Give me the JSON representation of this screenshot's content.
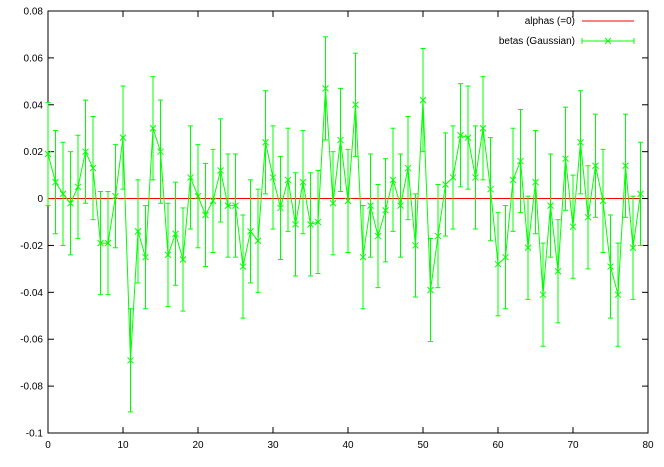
{
  "chart_data": {
    "type": "line",
    "title": "",
    "xlabel": "",
    "ylabel": "",
    "xlim": [
      0,
      80
    ],
    "ylim": [
      -0.1,
      0.08
    ],
    "xticks": [
      0,
      10,
      20,
      30,
      40,
      50,
      60,
      70,
      80
    ],
    "xtick_labels": [
      "0",
      "10",
      "20",
      "30",
      "40",
      "50",
      "60",
      "70",
      "80"
    ],
    "yticks": [
      -0.1,
      -0.08,
      -0.06,
      -0.04,
      -0.02,
      0,
      0.02,
      0.04,
      0.06,
      0.08
    ],
    "ytick_labels": [
      "-0.1",
      "-0.08",
      "-0.06",
      "-0.04",
      "-0.02",
      "0",
      "0.02",
      "0.04",
      "0.06",
      "0.08"
    ],
    "grid": false,
    "legend_position": "top-right",
    "series": [
      {
        "name": "alphas (=0)",
        "color": "#ff0000",
        "style": "line",
        "x": [
          0,
          79
        ],
        "y": [
          0,
          0
        ]
      },
      {
        "name": "betas (Gaussian)",
        "color": "#00ff00",
        "style": "linespoints-errorbars",
        "marker": "x",
        "x": [
          0,
          1,
          2,
          3,
          4,
          5,
          6,
          7,
          8,
          9,
          10,
          11,
          12,
          13,
          14,
          15,
          16,
          17,
          18,
          19,
          20,
          21,
          22,
          23,
          24,
          25,
          26,
          27,
          28,
          29,
          30,
          31,
          32,
          33,
          34,
          35,
          36,
          37,
          38,
          39,
          40,
          41,
          42,
          43,
          44,
          45,
          46,
          47,
          48,
          49,
          50,
          51,
          52,
          53,
          54,
          55,
          56,
          57,
          58,
          59,
          60,
          61,
          62,
          63,
          64,
          65,
          66,
          67,
          68,
          69,
          70,
          71,
          72,
          73,
          74,
          75,
          76,
          77,
          78,
          79
        ],
        "y": [
          0.019,
          0.007,
          0.002,
          -0.002,
          0.005,
          0.02,
          0.013,
          -0.019,
          -0.019,
          0.001,
          0.026,
          -0.069,
          -0.014,
          -0.025,
          0.03,
          0.02,
          -0.024,
          -0.015,
          -0.026,
          0.009,
          0.001,
          -0.007,
          -0.001,
          0.012,
          -0.003,
          -0.003,
          -0.029,
          -0.014,
          -0.018,
          0.024,
          0.009,
          -0.004,
          0.008,
          -0.011,
          0.007,
          -0.011,
          -0.01,
          0.047,
          -0.002,
          0.025,
          -0.001,
          0.04,
          -0.025,
          -0.003,
          -0.016,
          -0.005,
          0.008,
          -0.003,
          0.013,
          -0.02,
          0.042,
          -0.039,
          -0.016,
          0.006,
          0.009,
          0.027,
          0.026,
          0.009,
          0.03,
          0.004,
          -0.028,
          -0.025,
          0.008,
          0.016,
          -0.021,
          0.007,
          -0.041,
          -0.003,
          -0.031,
          0.017,
          -0.012,
          0.024,
          -0.008,
          0.014,
          -0.001,
          -0.029,
          -0.041,
          0.014,
          -0.021,
          0.002
        ],
        "error": 0.022
      }
    ]
  }
}
